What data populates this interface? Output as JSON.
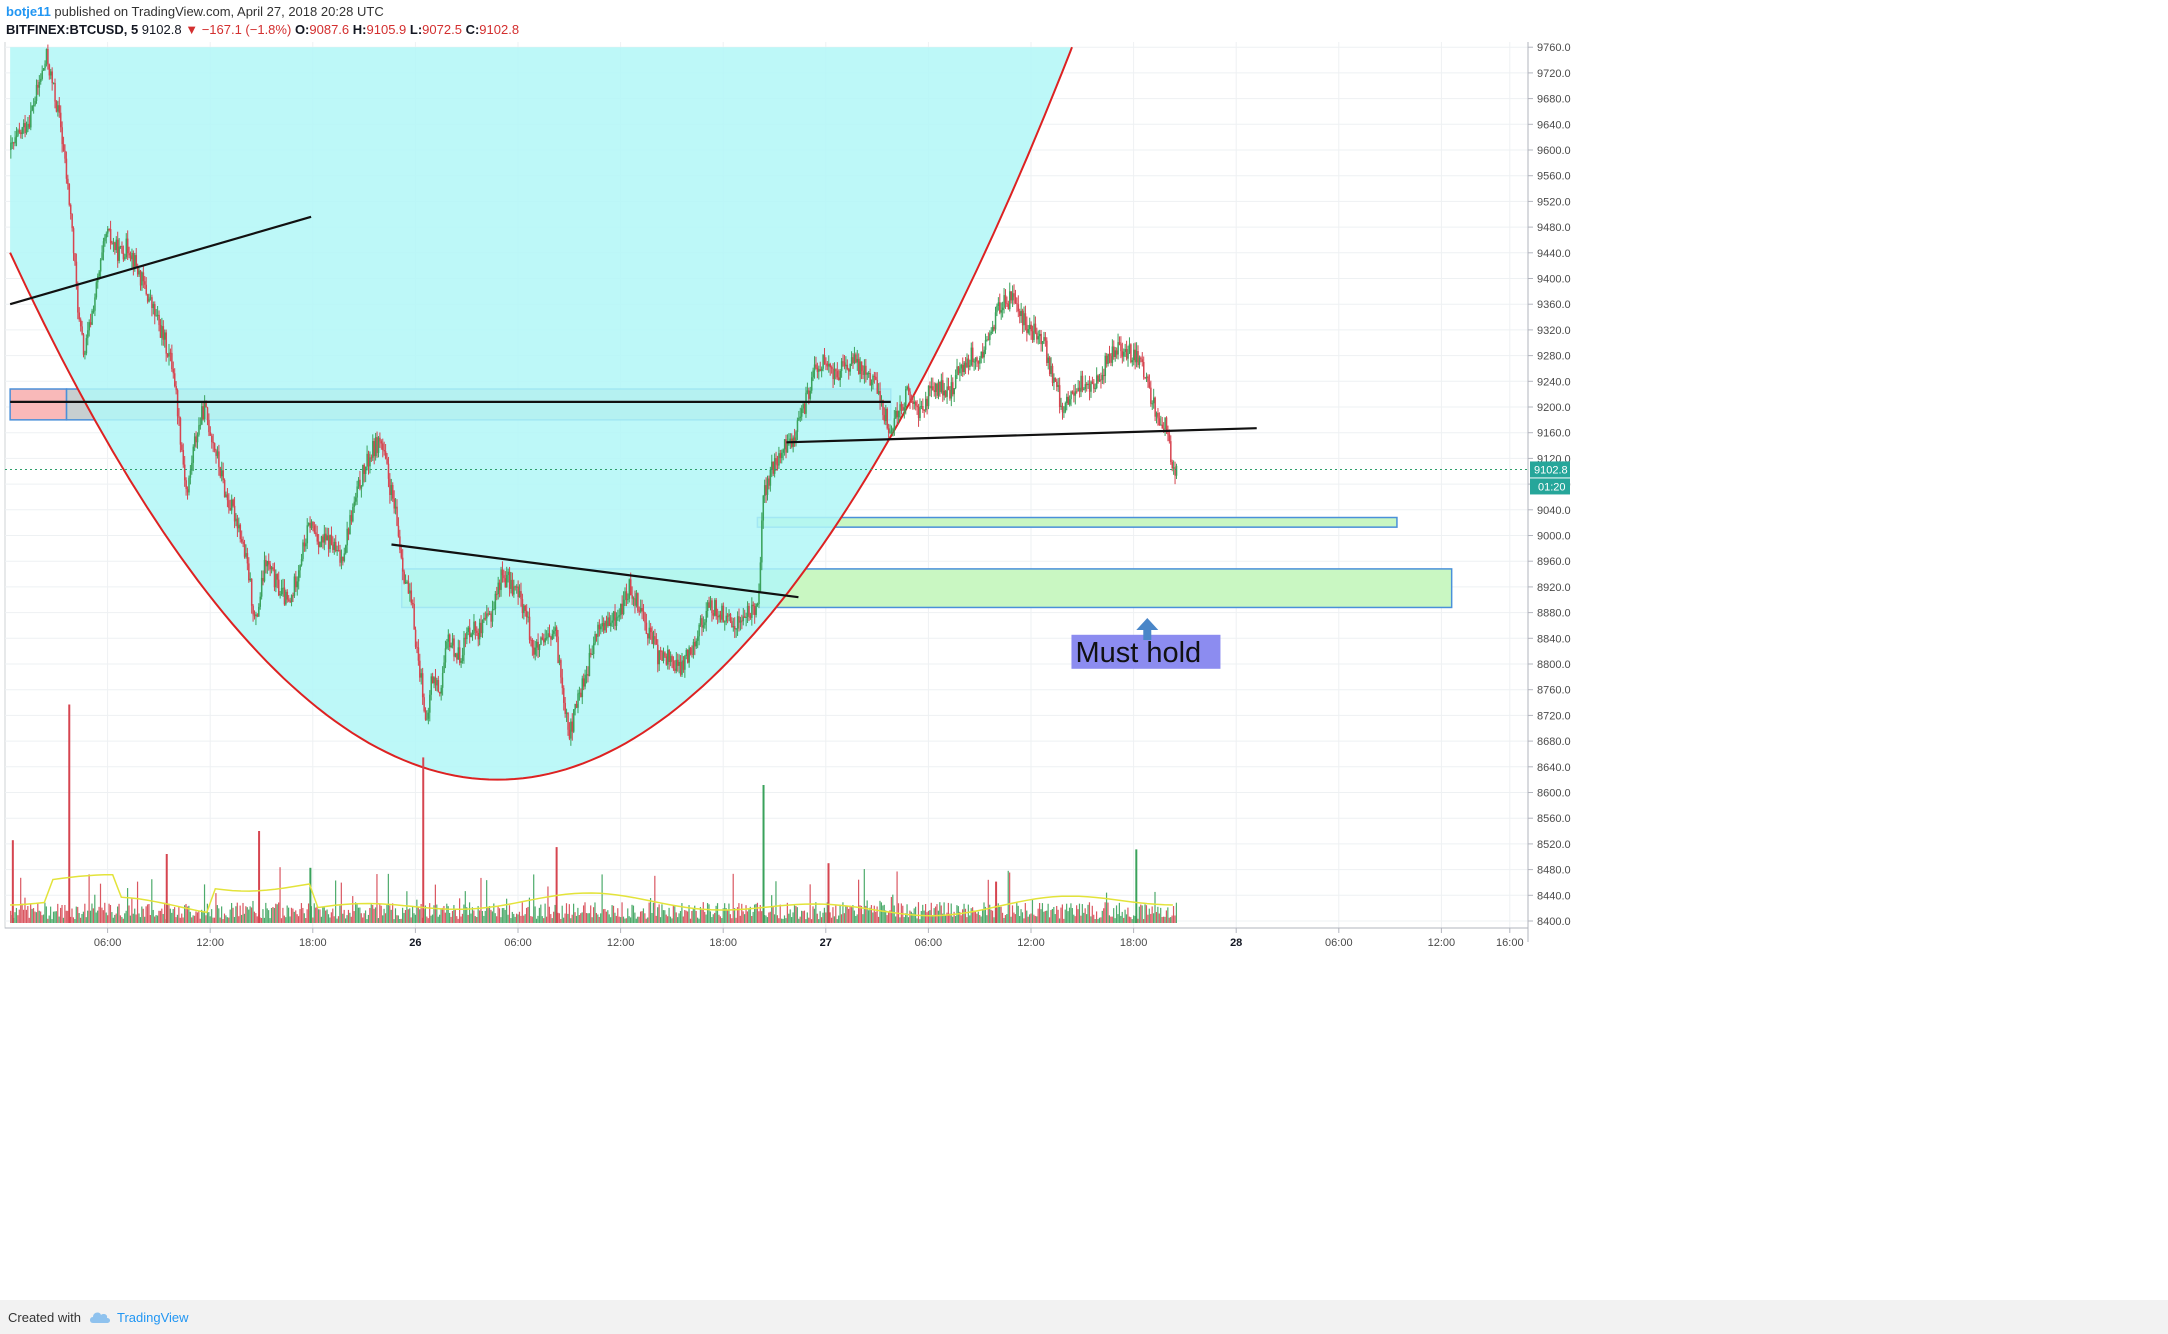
{
  "header": {
    "author": "botje11",
    "published_text": "published on TradingView.com, April 27, 2018 20:28 UTC",
    "symbol": "BITFINEX:BTCUSD, 5",
    "last": "9102.8",
    "change": "−167.1 (−1.8%)",
    "open_label": "O:",
    "open": "9087.6",
    "high_label": "H:",
    "high": "9105.9",
    "low_label": "L:",
    "low": "9072.5",
    "close_label": "C:",
    "close": "9102.8"
  },
  "footer": {
    "created_with": "Created with",
    "brand": "TradingView"
  },
  "annotation": {
    "text": "Must hold"
  },
  "price_badges": {
    "last": "9102.8",
    "countdown": "01:20"
  },
  "colors": {
    "up": "#26a69a",
    "up_candle": "#3aa25b",
    "down": "#d64550",
    "cup_fill": "#b2f7f7",
    "cup_curve": "#dd2222",
    "zone_green": "#c9f7c2",
    "zone_red": "#f9b9b9",
    "zone_gray": "#c7cfd0",
    "box_border": "#4a90d9",
    "annotation_bg": "#8c8cf0",
    "arrow": "#4a86c8",
    "volume_ma": "#e3e33a"
  },
  "chart_data": {
    "type": "line",
    "title": "",
    "xlabel": "",
    "ylabel": "",
    "ylim": [
      8400,
      9780
    ],
    "grid": true,
    "legend": "none",
    "y_ticks": [
      8400,
      8440,
      8480,
      8520,
      8560,
      8600,
      8640,
      8680,
      8720,
      8760,
      8800,
      8840,
      8880,
      8920,
      8960,
      9000,
      9040,
      9080,
      9120,
      9160,
      9200,
      9240,
      9280,
      9320,
      9360,
      9400,
      9440,
      9480,
      9520,
      9560,
      9600,
      9640,
      9680,
      9720,
      9760
    ],
    "y_tick_labels": [
      "8400.0",
      "8440.0",
      "8480.0",
      "8520.0",
      "8560.0",
      "8600.0",
      "8640.0",
      "8680.0",
      "8720.0",
      "8760.0",
      "8800.0",
      "8840.0",
      "8880.0",
      "8920.0",
      "8960.0",
      "9000.0",
      "9040.0",
      "9080.0",
      "9120.0",
      "9160.0",
      "9200.0",
      "9240.0",
      "9280.0",
      "9320.0",
      "9360.0",
      "9400.0",
      "9440.0",
      "9480.0",
      "9520.0",
      "9560.0",
      "9600.0",
      "9640.0",
      "9680.0",
      "9720.0",
      "9760.0"
    ],
    "x_ticks": [
      {
        "h": 6,
        "label": "06:00",
        "bold": false
      },
      {
        "h": 12,
        "label": "12:00",
        "bold": false
      },
      {
        "h": 18,
        "label": "18:00",
        "bold": false
      },
      {
        "h": 24,
        "label": "26",
        "bold": true
      },
      {
        "h": 30,
        "label": "06:00",
        "bold": false
      },
      {
        "h": 36,
        "label": "12:00",
        "bold": false
      },
      {
        "h": 42,
        "label": "18:00",
        "bold": false
      },
      {
        "h": 48,
        "label": "27",
        "bold": true
      },
      {
        "h": 54,
        "label": "06:00",
        "bold": false
      },
      {
        "h": 60,
        "label": "12:00",
        "bold": false
      },
      {
        "h": 66,
        "label": "18:00",
        "bold": false
      },
      {
        "h": 72,
        "label": "28",
        "bold": true
      },
      {
        "h": 78,
        "label": "06:00",
        "bold": false
      },
      {
        "h": 84,
        "label": "12:00",
        "bold": false
      },
      {
        "h": 88,
        "label": "16:00",
        "bold": false
      }
    ],
    "x_unit": "hours from Apr 25 00:00 UTC",
    "x_range": [
      0.3,
      89.2
    ],
    "series": [
      {
        "values": [
          [
            0.3,
            9600
          ],
          [
            1.4,
            9650
          ],
          [
            2.4,
            9745
          ],
          [
            3.2,
            9640
          ],
          [
            3.8,
            9500
          ],
          [
            4.3,
            9330
          ],
          [
            4.6,
            9280
          ],
          [
            5.2,
            9370
          ],
          [
            5.9,
            9470
          ],
          [
            6.6,
            9440
          ],
          [
            7.2,
            9450
          ],
          [
            7.9,
            9400
          ],
          [
            8.5,
            9360
          ],
          [
            9.2,
            9310
          ],
          [
            9.8,
            9260
          ],
          [
            10.2,
            9160
          ],
          [
            10.6,
            9060
          ],
          [
            11.0,
            9140
          ],
          [
            11.6,
            9200
          ],
          [
            12.2,
            9140
          ],
          [
            12.9,
            9060
          ],
          [
            13.6,
            9020
          ],
          [
            14.2,
            8940
          ],
          [
            14.6,
            8860
          ],
          [
            15.2,
            8960
          ],
          [
            15.9,
            8920
          ],
          [
            16.6,
            8890
          ],
          [
            17.2,
            8960
          ],
          [
            17.8,
            9020
          ],
          [
            18.4,
            8990
          ],
          [
            19.0,
            8990
          ],
          [
            19.6,
            8960
          ],
          [
            20.2,
            9030
          ],
          [
            20.8,
            9090
          ],
          [
            21.4,
            9130
          ],
          [
            21.9,
            9150
          ],
          [
            22.3,
            9100
          ],
          [
            22.8,
            9030
          ],
          [
            23.3,
            8940
          ],
          [
            23.8,
            8880
          ],
          [
            24.1,
            8810
          ],
          [
            24.4,
            8760
          ],
          [
            24.6,
            8690
          ],
          [
            24.9,
            8780
          ],
          [
            25.4,
            8760
          ],
          [
            25.9,
            8840
          ],
          [
            26.5,
            8810
          ],
          [
            27.2,
            8860
          ],
          [
            27.8,
            8850
          ],
          [
            28.4,
            8880
          ],
          [
            29.0,
            8940
          ],
          [
            29.7,
            8920
          ],
          [
            30.3,
            8890
          ],
          [
            30.9,
            8820
          ],
          [
            31.5,
            8830
          ],
          [
            32.1,
            8850
          ],
          [
            32.7,
            8740
          ],
          [
            33.0,
            8690
          ],
          [
            33.5,
            8750
          ],
          [
            34.1,
            8800
          ],
          [
            34.7,
            8860
          ],
          [
            35.3,
            8860
          ],
          [
            35.9,
            8880
          ],
          [
            36.5,
            8920
          ],
          [
            37.1,
            8890
          ],
          [
            37.6,
            8850
          ],
          [
            38.2,
            8810
          ],
          [
            38.8,
            8810
          ],
          [
            39.4,
            8790
          ],
          [
            40.0,
            8820
          ],
          [
            40.6,
            8860
          ],
          [
            41.2,
            8890
          ],
          [
            41.8,
            8880
          ],
          [
            42.4,
            8860
          ],
          [
            43.0,
            8870
          ],
          [
            43.6,
            8880
          ],
          [
            44.0,
            8900
          ],
          [
            44.3,
            9060
          ],
          [
            44.8,
            9100
          ],
          [
            45.4,
            9130
          ],
          [
            46.0,
            9150
          ],
          [
            46.6,
            9190
          ],
          [
            47.2,
            9250
          ],
          [
            47.8,
            9270
          ],
          [
            48.4,
            9250
          ],
          [
            49.0,
            9260
          ],
          [
            49.6,
            9270
          ],
          [
            50.2,
            9260
          ],
          [
            50.8,
            9240
          ],
          [
            51.3,
            9200
          ],
          [
            51.7,
            9160
          ],
          [
            52.2,
            9200
          ],
          [
            52.8,
            9220
          ],
          [
            53.4,
            9190
          ],
          [
            54.0,
            9220
          ],
          [
            54.6,
            9230
          ],
          [
            55.2,
            9220
          ],
          [
            55.8,
            9260
          ],
          [
            56.4,
            9280
          ],
          [
            57.0,
            9270
          ],
          [
            57.6,
            9320
          ],
          [
            58.2,
            9360
          ],
          [
            58.8,
            9370
          ],
          [
            59.4,
            9340
          ],
          [
            60.0,
            9320
          ],
          [
            60.6,
            9310
          ],
          [
            61.2,
            9250
          ],
          [
            61.8,
            9200
          ],
          [
            62.4,
            9220
          ],
          [
            63.0,
            9240
          ],
          [
            63.6,
            9230
          ],
          [
            64.2,
            9260
          ],
          [
            64.8,
            9290
          ],
          [
            65.4,
            9290
          ],
          [
            66.0,
            9280
          ],
          [
            66.6,
            9250
          ],
          [
            67.2,
            9200
          ],
          [
            67.8,
            9170
          ],
          [
            68.2,
            9110
          ],
          [
            68.5,
            9100
          ]
        ]
      }
    ],
    "volume": {
      "ylim": [
        0,
        100
      ],
      "spikes": [
        [
          3.7,
          95
        ],
        [
          24.4,
          72
        ],
        [
          44.3,
          60
        ],
        [
          14.8,
          40
        ],
        [
          32.2,
          33
        ],
        [
          66.1,
          32
        ],
        [
          0.4,
          36
        ],
        [
          9.4,
          30
        ],
        [
          17.8,
          24
        ],
        [
          48.1,
          26
        ],
        [
          57.9,
          18
        ]
      ]
    },
    "drawings": {
      "cup_curve": {
        "vertex_h": 28.8,
        "vertex_p": 8620,
        "passes": [
          [
            0.3,
            9360
          ],
          [
            62.4,
            9760
          ]
        ]
      },
      "trendlines": [
        {
          "from": [
            0.3,
            9360
          ],
          "to": [
            17.9,
            9496
          ]
        },
        {
          "from": [
            0.3,
            9208
          ],
          "to": [
            51.8,
            9208
          ]
        },
        {
          "from": [
            22.6,
            8986
          ],
          "to": [
            46.4,
            8904
          ]
        },
        {
          "from": [
            45.7,
            9145
          ],
          "to": [
            73.2,
            9167
          ]
        }
      ],
      "zones": [
        {
          "kind": "red",
          "h_from": 0.3,
          "h_to": 3.6,
          "p_from": 9180,
          "p_to": 9228
        },
        {
          "kind": "gray",
          "h_from": 3.6,
          "h_to": 51.8,
          "p_from": 9180,
          "p_to": 9228
        },
        {
          "kind": "green",
          "h_from": 44.0,
          "h_to": 81.4,
          "p_from": 9013,
          "p_to": 9028
        },
        {
          "kind": "green",
          "h_from": 23.2,
          "h_to": 84.6,
          "p_from": 8888,
          "p_to": 8948
        }
      ],
      "arrow": {
        "h": 66.8,
        "p": 8856
      },
      "label_pos": {
        "h": 62.6,
        "p": 8805
      }
    }
  }
}
